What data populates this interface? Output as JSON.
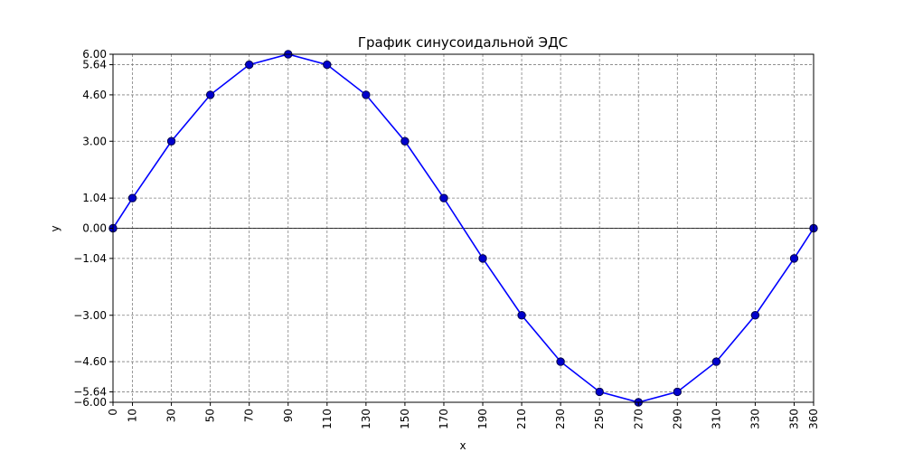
{
  "chart_data": {
    "type": "line",
    "title": "График синусоидальной ЭДС",
    "xlabel": "x",
    "ylabel": "y",
    "xlim": [
      0,
      360
    ],
    "ylim": [
      -6.0,
      6.0
    ],
    "grid": true,
    "x_ticks": [
      0,
      10,
      30,
      50,
      70,
      90,
      110,
      130,
      150,
      170,
      190,
      210,
      230,
      250,
      270,
      290,
      310,
      330,
      350,
      360
    ],
    "x_tick_labels": [
      "0",
      "10",
      "30",
      "50",
      "70",
      "90",
      "110",
      "130",
      "150",
      "170",
      "190",
      "210",
      "230",
      "250",
      "270",
      "290",
      "310",
      "330",
      "350",
      "360"
    ],
    "y_ticks": [
      -6.0,
      -5.64,
      -4.6,
      -3.0,
      -1.04,
      0.0,
      1.04,
      3.0,
      4.6,
      5.64,
      6.0
    ],
    "y_tick_labels": [
      "−6.00",
      "−5.64",
      "−4.60",
      "−3.00",
      "−1.04",
      "0.00",
      "1.04",
      "3.00",
      "4.60",
      "5.64",
      "6.00"
    ],
    "series": [
      {
        "x": [
          0,
          10,
          30,
          50,
          70,
          90,
          110,
          130,
          150,
          170,
          190,
          210,
          230,
          250,
          270,
          290,
          310,
          330,
          350,
          360
        ],
        "values": [
          0.0,
          1.04,
          3.0,
          4.6,
          5.64,
          6.0,
          5.64,
          4.6,
          3.0,
          1.04,
          -1.04,
          -3.0,
          -4.6,
          -5.64,
          -6.0,
          -5.64,
          -4.6,
          -3.0,
          -1.04,
          0.0
        ],
        "color": "#0000ff",
        "marker_color": "#0000cc"
      }
    ]
  }
}
